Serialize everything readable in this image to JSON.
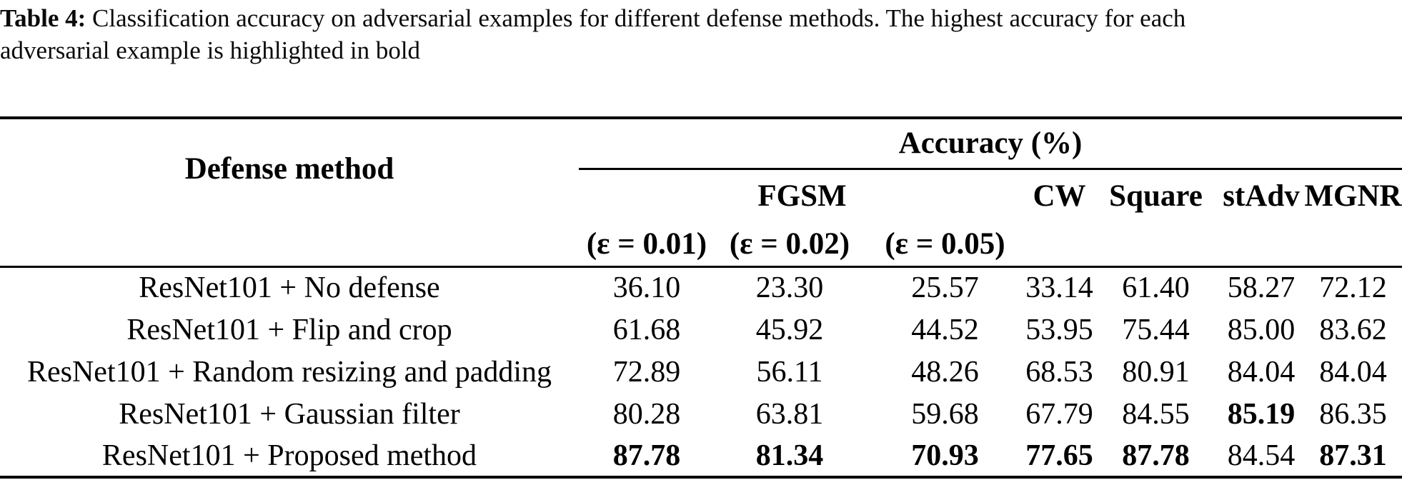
{
  "caption": {
    "label": "Table 4:",
    "line1": "Classification accuracy on adversarial examples for different defense methods. The highest accuracy for each",
    "line2": "adversarial example is highlighted in bold"
  },
  "table": {
    "method_header": "Defense method",
    "accuracy_header": "Accuracy (%)",
    "attack_headers": {
      "fgsm": "FGSM",
      "cw": "CW",
      "square": "Square",
      "stadv": "stAdv",
      "mgnr": "MGNR"
    },
    "epsilon_headers": [
      "(ε = 0.01)",
      "(ε = 0.02)",
      "(ε = 0.05)"
    ],
    "rows": [
      {
        "method": "ResNet101 + No defense",
        "values": [
          "36.10",
          "23.30",
          "25.57",
          "33.14",
          "61.40",
          "58.27",
          "72.12"
        ],
        "bold": [
          false,
          false,
          false,
          false,
          false,
          false,
          false
        ]
      },
      {
        "method": "ResNet101 + Flip and crop",
        "values": [
          "61.68",
          "45.92",
          "44.52",
          "53.95",
          "75.44",
          "85.00",
          "83.62"
        ],
        "bold": [
          false,
          false,
          false,
          false,
          false,
          false,
          false
        ]
      },
      {
        "method": "ResNet101 + Random resizing and padding",
        "values": [
          "72.89",
          "56.11",
          "48.26",
          "68.53",
          "80.91",
          "84.04",
          "84.04"
        ],
        "bold": [
          false,
          false,
          false,
          false,
          false,
          false,
          false
        ]
      },
      {
        "method": "ResNet101 + Gaussian filter",
        "values": [
          "80.28",
          "63.81",
          "59.68",
          "67.79",
          "84.55",
          "85.19",
          "86.35"
        ],
        "bold": [
          false,
          false,
          false,
          false,
          false,
          true,
          false
        ]
      },
      {
        "method": "ResNet101 + Proposed method",
        "values": [
          "87.78",
          "81.34",
          "70.93",
          "77.65",
          "87.78",
          "84.54",
          "87.31"
        ],
        "bold": [
          true,
          true,
          true,
          true,
          true,
          false,
          true
        ]
      }
    ]
  },
  "text_color": "#000000",
  "background_color": "#ffffff"
}
